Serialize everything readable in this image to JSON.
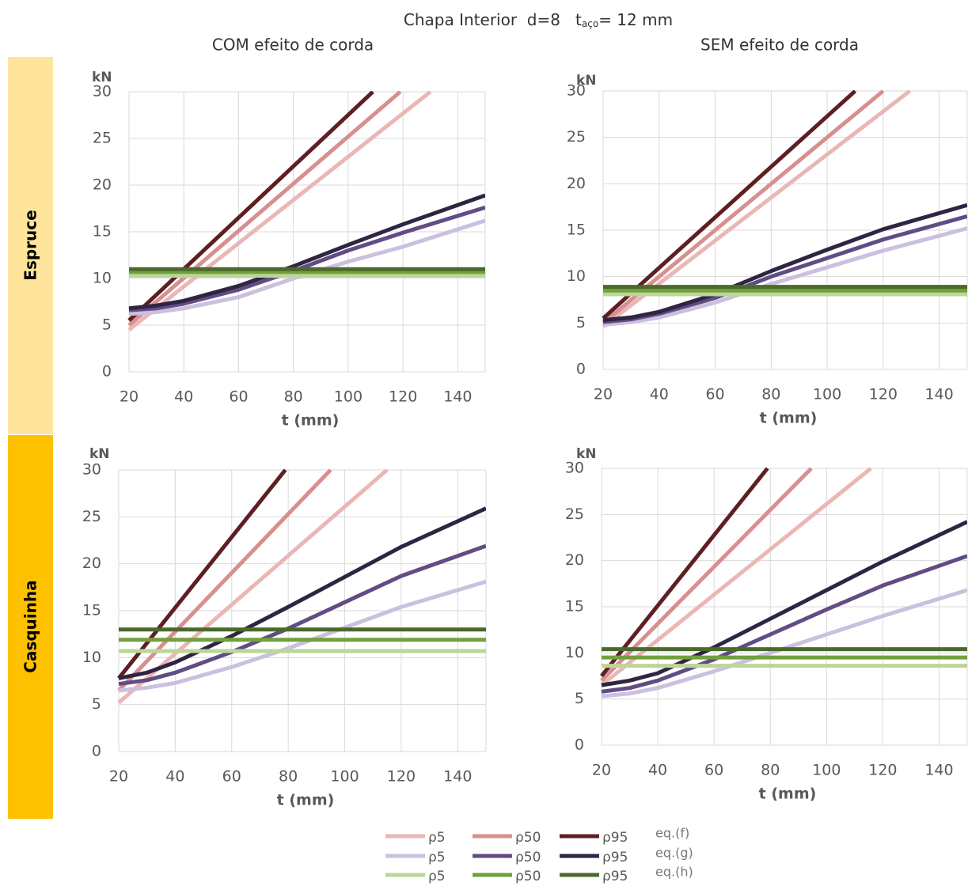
{
  "header": {
    "title_main": "Chapa Interior  d=8   ",
    "title_t": "t",
    "title_sub": "aço",
    "title_rest": "= 12 mm"
  },
  "row_labels": [
    "Espruce",
    "Casquinha"
  ],
  "legend_rows": [
    "eq.(f)",
    "eq.(g)",
    "eq.(h)"
  ],
  "chart_data": [
    {
      "type": "line",
      "title": "COM efeito de corda",
      "xlabel": "t (mm)",
      "ylabel": "kN",
      "xlim": [
        20,
        150
      ],
      "ylim": [
        0,
        30
      ],
      "xticks": [
        20,
        40,
        60,
        80,
        100,
        120,
        140
      ],
      "yticks": [
        0,
        5,
        10,
        15,
        20,
        25,
        30
      ],
      "grid": true,
      "series": [
        {
          "name": "ρ5",
          "color": "#e9b7b5",
          "x": [
            20,
            130
          ],
          "values": [
            4.5,
            30
          ]
        },
        {
          "name": "ρ50",
          "color": "#d88f8f",
          "x": [
            20,
            119
          ],
          "values": [
            5,
            30
          ]
        },
        {
          "name": "ρ95",
          "color": "#5e1f22",
          "x": [
            20,
            109
          ],
          "values": [
            5.5,
            30
          ]
        },
        {
          "name": "ρ5",
          "color": "#cbc0de",
          "x": [
            20,
            30,
            40,
            60,
            80,
            100,
            120,
            150
          ],
          "values": [
            6.2,
            6.4,
            6.8,
            8,
            10,
            11.8,
            13.4,
            16.2
          ]
        },
        {
          "name": "ρ50",
          "color": "#614c85",
          "x": [
            20,
            30,
            40,
            60,
            80,
            100,
            120,
            150
          ],
          "values": [
            6.6,
            6.8,
            7.3,
            8.8,
            10.8,
            13,
            14.9,
            17.6
          ]
        },
        {
          "name": "ρ95",
          "color": "#2f2542",
          "x": [
            20,
            30,
            40,
            60,
            80,
            100,
            120,
            150
          ],
          "values": [
            6.8,
            7.1,
            7.6,
            9.2,
            11.3,
            13.6,
            15.8,
            18.9
          ]
        },
        {
          "name": "ρ5",
          "color": "#bcd697",
          "x": [
            20,
            150
          ],
          "values": [
            10.3,
            10.3
          ]
        },
        {
          "name": "ρ50",
          "color": "#72a03e",
          "x": [
            20,
            150
          ],
          "values": [
            10.7,
            10.7
          ]
        },
        {
          "name": "ρ95",
          "color": "#4b6a2a",
          "x": [
            20,
            150
          ],
          "values": [
            11,
            11
          ]
        }
      ]
    },
    {
      "type": "line",
      "title": "SEM efeito de corda",
      "xlabel": "t (mm)",
      "ylabel": "kN",
      "xlim": [
        20,
        150
      ],
      "ylim": [
        0,
        30
      ],
      "xticks": [
        20,
        40,
        60,
        80,
        100,
        120,
        140
      ],
      "yticks": [
        0,
        5,
        10,
        15,
        20,
        25,
        30
      ],
      "grid": true,
      "series": [
        {
          "name": "ρ5",
          "color": "#e9b7b5",
          "x": [
            20,
            129.5
          ],
          "values": [
            4.6,
            30
          ]
        },
        {
          "name": "ρ50",
          "color": "#d88f8f",
          "x": [
            20,
            120
          ],
          "values": [
            5,
            30
          ]
        },
        {
          "name": "ρ95",
          "color": "#5e1f22",
          "x": [
            20,
            110
          ],
          "values": [
            5.5,
            30
          ]
        },
        {
          "name": "ρ5",
          "color": "#cbc0de",
          "x": [
            20,
            30,
            40,
            60,
            80,
            100,
            120,
            150
          ],
          "values": [
            4.8,
            5.1,
            5.6,
            7.2,
            9.2,
            11,
            12.8,
            15.2
          ]
        },
        {
          "name": "ρ50",
          "color": "#614c85",
          "x": [
            20,
            30,
            40,
            60,
            80,
            100,
            120,
            150
          ],
          "values": [
            5.1,
            5.4,
            6,
            7.7,
            10,
            12,
            14,
            16.5
          ]
        },
        {
          "name": "ρ95",
          "color": "#2f2542",
          "x": [
            20,
            30,
            40,
            60,
            80,
            100,
            120,
            150
          ],
          "values": [
            5.3,
            5.6,
            6.2,
            8.1,
            10.6,
            12.9,
            15.1,
            17.7
          ]
        },
        {
          "name": "ρ5",
          "color": "#bcd697",
          "x": [
            20,
            150
          ],
          "values": [
            8.1,
            8.1
          ]
        },
        {
          "name": "ρ50",
          "color": "#72a03e",
          "x": [
            20,
            150
          ],
          "values": [
            8.5,
            8.5
          ]
        },
        {
          "name": "ρ95",
          "color": "#4b6a2a",
          "x": [
            20,
            150
          ],
          "values": [
            8.9,
            8.9
          ]
        }
      ]
    },
    {
      "type": "line",
      "xlabel": "t (mm)",
      "ylabel": "kN",
      "xlim": [
        20,
        150
      ],
      "ylim": [
        0,
        30
      ],
      "xticks": [
        20,
        40,
        60,
        80,
        100,
        120,
        140
      ],
      "yticks": [
        0,
        5,
        10,
        15,
        20,
        25,
        30
      ],
      "grid": true,
      "series": [
        {
          "name": "ρ5",
          "color": "#e9b7b5",
          "x": [
            20,
            115
          ],
          "values": [
            5.2,
            30
          ]
        },
        {
          "name": "ρ50",
          "color": "#d88f8f",
          "x": [
            20,
            95
          ],
          "values": [
            6.5,
            30
          ]
        },
        {
          "name": "ρ95",
          "color": "#5e1f22",
          "x": [
            20,
            79
          ],
          "values": [
            7.8,
            30
          ]
        },
        {
          "name": "ρ5",
          "color": "#cbc0de",
          "x": [
            20,
            30,
            40,
            60,
            80,
            100,
            120,
            150
          ],
          "values": [
            6.5,
            6.8,
            7.3,
            9,
            11,
            13.2,
            15.4,
            18.1
          ]
        },
        {
          "name": "ρ50",
          "color": "#614c85",
          "x": [
            20,
            30,
            40,
            60,
            80,
            100,
            120,
            150
          ],
          "values": [
            7.2,
            7.6,
            8.4,
            10.6,
            13.1,
            15.9,
            18.7,
            21.9
          ]
        },
        {
          "name": "ρ95",
          "color": "#2f2542",
          "x": [
            20,
            30,
            40,
            60,
            80,
            100,
            120,
            150
          ],
          "values": [
            7.8,
            8.4,
            9.5,
            12.3,
            15.4,
            18.6,
            21.8,
            25.9
          ]
        },
        {
          "name": "ρ5",
          "color": "#bcd697",
          "x": [
            20,
            150
          ],
          "values": [
            10.7,
            10.7
          ]
        },
        {
          "name": "ρ50",
          "color": "#72a03e",
          "x": [
            20,
            150
          ],
          "values": [
            11.9,
            11.9
          ]
        },
        {
          "name": "ρ95",
          "color": "#4b6a2a",
          "x": [
            20,
            150
          ],
          "values": [
            13,
            13
          ]
        }
      ]
    },
    {
      "type": "line",
      "xlabel": "t (mm)",
      "ylabel": "kN",
      "xlim": [
        20,
        150
      ],
      "ylim": [
        0,
        30
      ],
      "xticks": [
        20,
        40,
        60,
        80,
        100,
        120,
        140
      ],
      "yticks": [
        0,
        5,
        10,
        15,
        20,
        25,
        30
      ],
      "grid": true,
      "series": [
        {
          "name": "ρ5",
          "color": "#e9b7b5",
          "x": [
            20,
            115.8
          ],
          "values": [
            6.5,
            30
          ]
        },
        {
          "name": "ρ50",
          "color": "#d88f8f",
          "x": [
            20,
            94.6
          ],
          "values": [
            7,
            30
          ]
        },
        {
          "name": "ρ95",
          "color": "#5e1f22",
          "x": [
            20,
            79
          ],
          "values": [
            7.5,
            30
          ]
        },
        {
          "name": "ρ5",
          "color": "#cbc0de",
          "x": [
            20,
            30,
            40,
            60,
            80,
            100,
            120,
            150
          ],
          "values": [
            5.3,
            5.6,
            6.2,
            8,
            10,
            12,
            14,
            16.8
          ]
        },
        {
          "name": "ρ50",
          "color": "#614c85",
          "x": [
            20,
            30,
            40,
            60,
            80,
            100,
            120,
            150
          ],
          "values": [
            5.8,
            6.2,
            7,
            9.3,
            12,
            14.7,
            17.3,
            20.5
          ]
        },
        {
          "name": "ρ95",
          "color": "#2f2542",
          "x": [
            20,
            30,
            40,
            60,
            80,
            100,
            120,
            150
          ],
          "values": [
            6.5,
            7,
            7.8,
            10.6,
            13.7,
            16.8,
            19.9,
            24.2
          ]
        },
        {
          "name": "ρ5",
          "color": "#bcd697",
          "x": [
            20,
            150
          ],
          "values": [
            8.6,
            8.6
          ]
        },
        {
          "name": "ρ50",
          "color": "#72a03e",
          "x": [
            20,
            150
          ],
          "values": [
            9.5,
            9.5
          ]
        },
        {
          "name": "ρ95",
          "color": "#4b6a2a",
          "x": [
            20,
            150
          ],
          "values": [
            10.4,
            10.4
          ]
        }
      ]
    }
  ]
}
